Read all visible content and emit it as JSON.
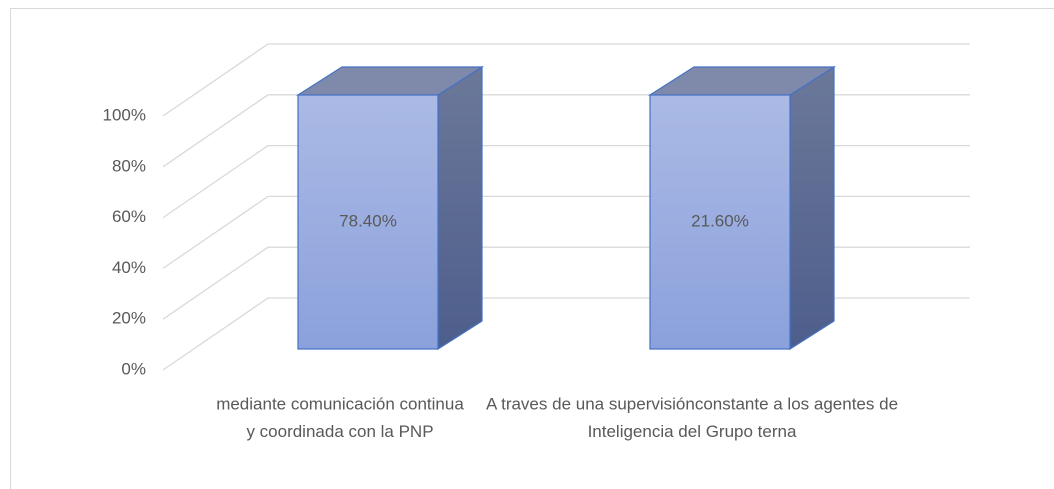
{
  "chart_data": {
    "type": "bar100",
    "categories": [
      "mediante comunicación continua\ny coordinada con la PNP",
      "A traves de una supervisión\nconstante a los agentes de\nInteligencia del Grupo terna"
    ],
    "values": [
      78.4,
      21.6
    ],
    "value_labels": [
      "78.40%",
      "21.60%"
    ],
    "color": "#97a9df",
    "ylim": [
      0,
      100
    ],
    "yticks": [
      {
        "value": 0,
        "label": "0%"
      },
      {
        "value": 20,
        "label": "20%"
      },
      {
        "value": 40,
        "label": "40%"
      },
      {
        "value": 60,
        "label": "60%"
      },
      {
        "value": 80,
        "label": "80%"
      },
      {
        "value": 100,
        "label": "100%"
      }
    ],
    "grid": true
  }
}
